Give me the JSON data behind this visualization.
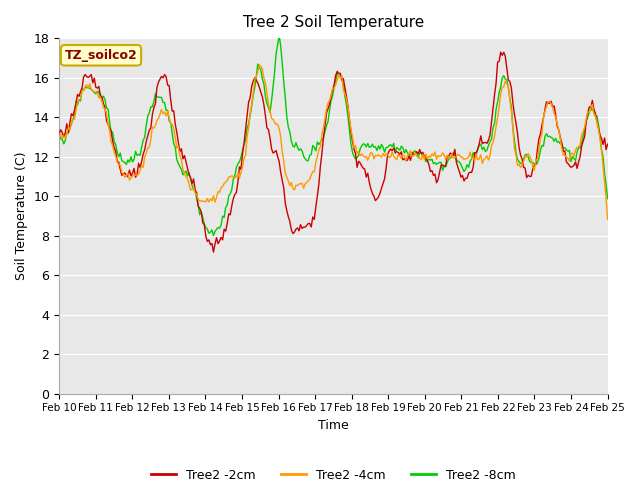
{
  "title": "Tree 2 Soil Temperature",
  "xlabel": "Time",
  "ylabel": "Soil Temperature (C)",
  "annotation": "TZ_soilco2",
  "ylim": [
    0,
    18
  ],
  "yticks": [
    0,
    2,
    4,
    6,
    8,
    10,
    12,
    14,
    16,
    18
  ],
  "x_labels": [
    "Feb 10",
    "Feb 11",
    "Feb 12",
    "Feb 13",
    "Feb 14",
    "Feb 15",
    "Feb 16",
    "Feb 17",
    "Feb 18",
    "Feb 19",
    "Feb 20",
    "Feb 21",
    "Feb 22",
    "Feb 23",
    "Feb 24",
    "Feb 25"
  ],
  "line_colors": [
    "#cc0000",
    "#ff9900",
    "#00cc00"
  ],
  "line_labels": [
    "Tree2 -2cm",
    "Tree2 -4cm",
    "Tree2 -8cm"
  ],
  "background_color": "#ffffff",
  "plot_bg_color": "#e8e8e8",
  "grid_color": "#ffffff",
  "linewidth": 1.0,
  "n_days": 15,
  "pts_per_day": 24
}
